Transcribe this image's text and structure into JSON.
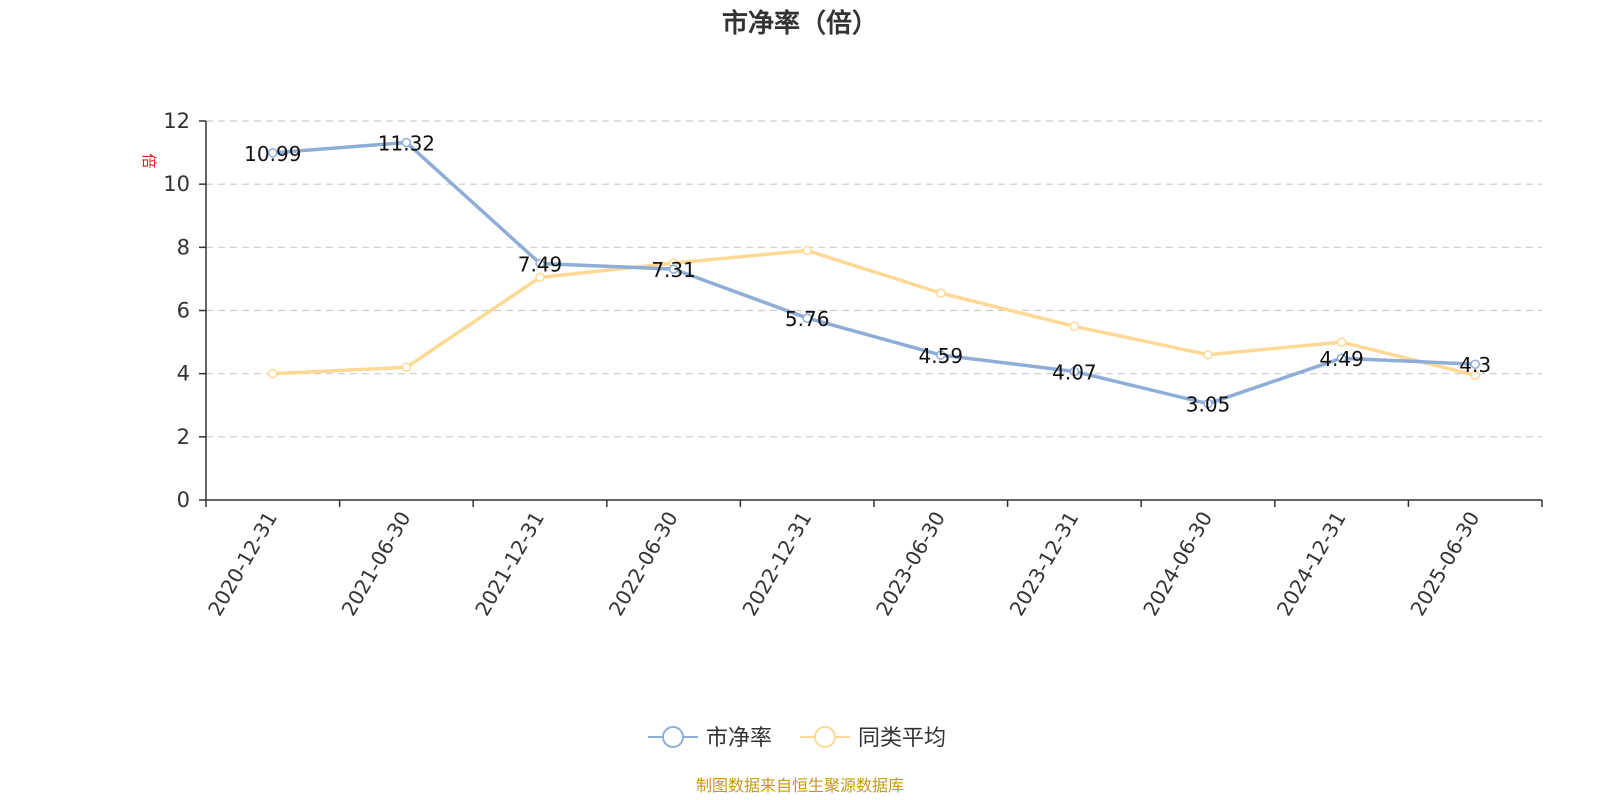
{
  "chart_data": {
    "type": "line",
    "title": "市净率（倍）",
    "unit_label": "倍",
    "categories": [
      "2020-12-31",
      "2021-06-30",
      "2021-12-31",
      "2022-06-30",
      "2022-12-31",
      "2023-06-30",
      "2023-12-31",
      "2024-06-30",
      "2024-12-31",
      "2025-06-30"
    ],
    "ylim": [
      0,
      12
    ],
    "yticks": [
      0,
      2,
      4,
      6,
      8,
      10,
      12
    ],
    "grid": true,
    "legend_position": "bottom",
    "series": [
      {
        "name": "市净率",
        "color": "#8eaed8",
        "values": [
          10.99,
          11.32,
          7.49,
          7.31,
          5.76,
          4.59,
          4.07,
          3.05,
          4.49,
          4.3
        ],
        "data_labels": [
          "10.99",
          "11.32",
          "7.49",
          "7.31",
          "5.76",
          "4.59",
          "4.07",
          "3.05",
          "4.49",
          "4.3"
        ]
      },
      {
        "name": "同类平均",
        "color": "#fdd995",
        "values": [
          4.0,
          4.2,
          7.05,
          7.5,
          7.9,
          6.55,
          5.5,
          4.6,
          5.0,
          3.95
        ]
      }
    ]
  },
  "colors": {
    "axis": "#333333",
    "grid": "#cccccc",
    "unit": "#e02020",
    "source": "#c8961e"
  },
  "footer": {
    "source": "制图数据来自恒生聚源数据库"
  }
}
